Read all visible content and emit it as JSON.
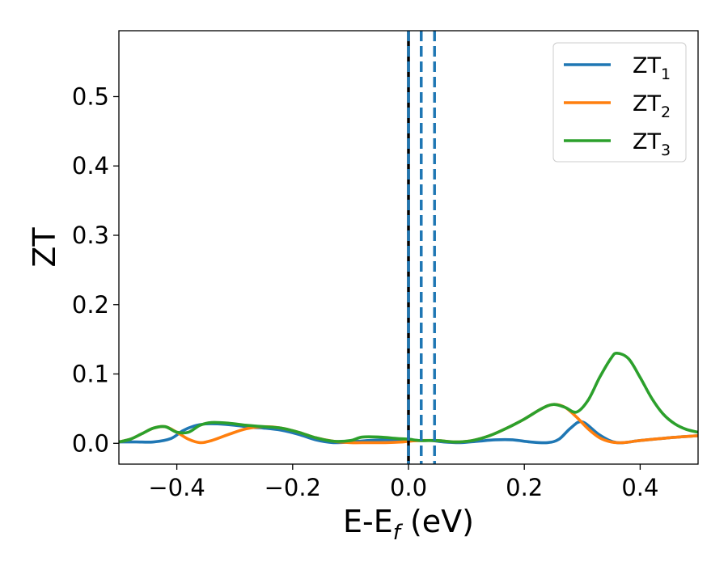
{
  "chart_data": {
    "type": "line",
    "xlabel": "E-E",
    "xlabel_sub": "f",
    "xlabel_unit": " (eV)",
    "ylabel": "ZT",
    "xlim": [
      -0.5,
      0.5
    ],
    "ylim": [
      -0.03,
      0.595
    ],
    "xticks": [
      -0.4,
      -0.2,
      0.0,
      0.2,
      0.4
    ],
    "xtick_labels": [
      "−0.4",
      "−0.2",
      "0.0",
      "0.2",
      "0.4"
    ],
    "yticks": [
      0.0,
      0.1,
      0.2,
      0.3,
      0.4,
      0.5
    ],
    "ytick_labels": [
      "0.0",
      "0.1",
      "0.2",
      "0.3",
      "0.4",
      "0.5"
    ],
    "legend_position": "top-right",
    "vlines": [
      {
        "x": 0.0,
        "color": "#000000",
        "style": "solid"
      },
      {
        "x": 0.0,
        "color": "#1f77b4",
        "style": "dashed"
      },
      {
        "x": 0.022,
        "color": "#1f77b4",
        "style": "dashed"
      },
      {
        "x": 0.045,
        "color": "#1f77b4",
        "style": "dashed"
      }
    ],
    "series": [
      {
        "name": "ZT",
        "name_sub": "1",
        "color": "#1f77b4",
        "x": [
          -0.5,
          -0.47,
          -0.44,
          -0.41,
          -0.39,
          -0.37,
          -0.35,
          -0.33,
          -0.3,
          -0.27,
          -0.25,
          -0.22,
          -0.19,
          -0.16,
          -0.13,
          -0.1,
          -0.07,
          -0.04,
          -0.01,
          0.0,
          0.02,
          0.04,
          0.06,
          0.09,
          0.12,
          0.15,
          0.18,
          0.21,
          0.24,
          0.26,
          0.28,
          0.3,
          0.33,
          0.36,
          0.4,
          0.45,
          0.5
        ],
        "y": [
          0.002,
          0.002,
          0.002,
          0.007,
          0.018,
          0.025,
          0.028,
          0.028,
          0.026,
          0.023,
          0.022,
          0.019,
          0.013,
          0.005,
          0.001,
          0.002,
          0.004,
          0.005,
          0.005,
          0.005,
          0.004,
          0.004,
          0.002,
          0.001,
          0.003,
          0.005,
          0.005,
          0.002,
          0.001,
          0.006,
          0.022,
          0.031,
          0.012,
          0.001,
          0.004,
          0.008,
          0.011
        ]
      },
      {
        "name": "ZT",
        "name_sub": "2",
        "color": "#ff7f0e",
        "x": [
          -0.5,
          -0.48,
          -0.46,
          -0.44,
          -0.42,
          -0.4,
          -0.38,
          -0.36,
          -0.34,
          -0.31,
          -0.28,
          -0.25,
          -0.22,
          -0.19,
          -0.16,
          -0.13,
          -0.1,
          -0.07,
          -0.04,
          -0.01,
          0.0,
          0.02,
          0.05,
          0.08,
          0.11,
          0.14,
          0.17,
          0.2,
          0.23,
          0.25,
          0.27,
          0.29,
          0.31,
          0.33,
          0.35,
          0.37,
          0.4,
          0.45,
          0.5
        ],
        "y": [
          0.002,
          0.006,
          0.014,
          0.022,
          0.024,
          0.016,
          0.006,
          0.001,
          0.004,
          0.013,
          0.021,
          0.024,
          0.022,
          0.016,
          0.008,
          0.003,
          0.001,
          0.001,
          0.001,
          0.002,
          0.003,
          0.004,
          0.004,
          0.002,
          0.004,
          0.011,
          0.022,
          0.035,
          0.05,
          0.056,
          0.052,
          0.038,
          0.021,
          0.008,
          0.002,
          0.001,
          0.004,
          0.008,
          0.011
        ]
      },
      {
        "name": "ZT",
        "name_sub": "3",
        "color": "#2ca02c",
        "x": [
          -0.5,
          -0.48,
          -0.46,
          -0.44,
          -0.42,
          -0.4,
          -0.38,
          -0.36,
          -0.34,
          -0.31,
          -0.28,
          -0.25,
          -0.22,
          -0.19,
          -0.16,
          -0.13,
          -0.1,
          -0.08,
          -0.05,
          -0.02,
          0.0,
          0.02,
          0.05,
          0.08,
          0.11,
          0.14,
          0.17,
          0.2,
          0.23,
          0.25,
          0.27,
          0.29,
          0.31,
          0.33,
          0.35,
          0.36,
          0.38,
          0.4,
          0.42,
          0.44,
          0.46,
          0.48,
          0.5
        ],
        "y": [
          0.002,
          0.006,
          0.014,
          0.022,
          0.024,
          0.016,
          0.016,
          0.026,
          0.03,
          0.029,
          0.026,
          0.024,
          0.022,
          0.016,
          0.008,
          0.003,
          0.004,
          0.009,
          0.009,
          0.007,
          0.006,
          0.004,
          0.004,
          0.002,
          0.004,
          0.011,
          0.022,
          0.035,
          0.05,
          0.056,
          0.052,
          0.045,
          0.062,
          0.095,
          0.123,
          0.13,
          0.122,
          0.095,
          0.065,
          0.042,
          0.028,
          0.02,
          0.016
        ]
      }
    ]
  }
}
